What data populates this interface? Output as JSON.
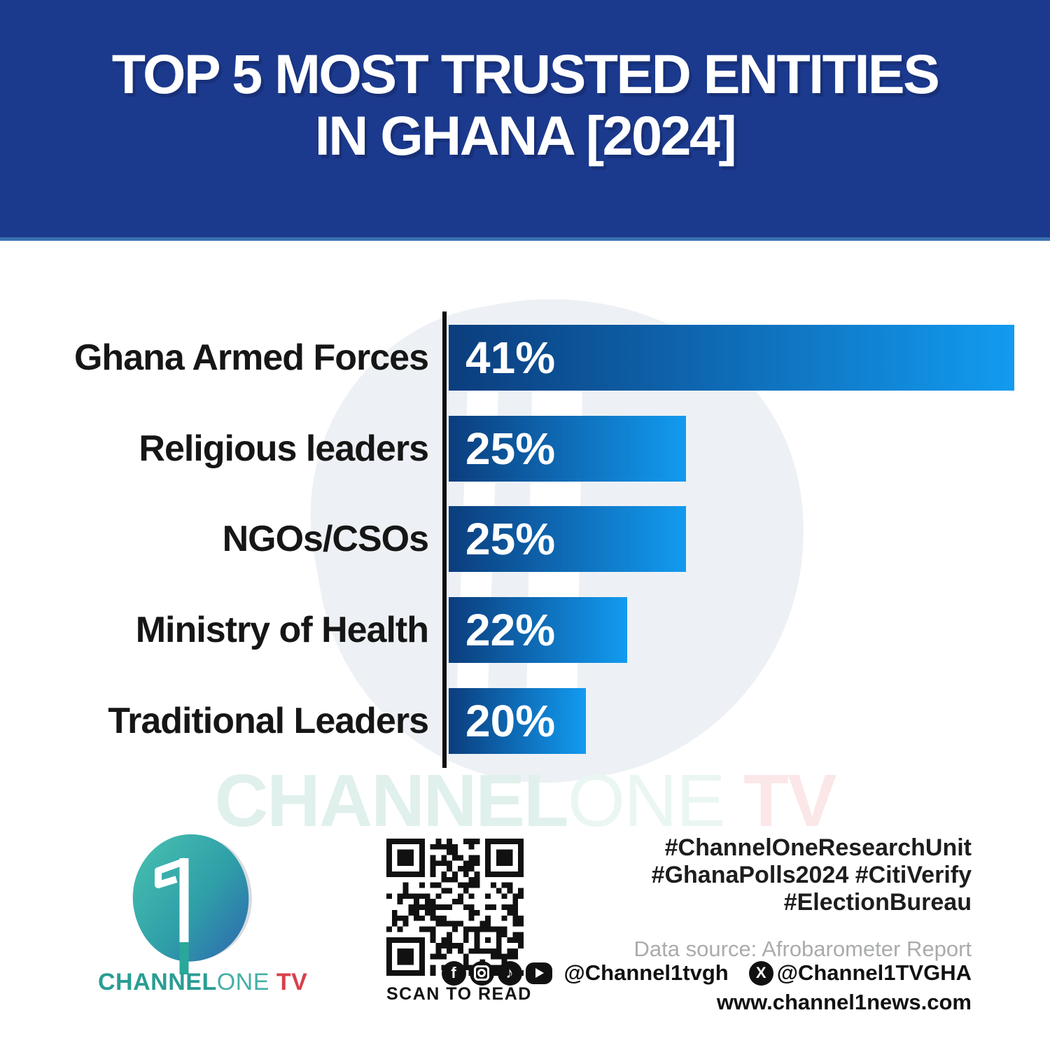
{
  "header": {
    "title_line1": "TOP 5 MOST TRUSTED ENTITIES",
    "title_line2": "IN GHANA [2024]"
  },
  "chart_data": {
    "type": "bar",
    "orientation": "horizontal",
    "title": "TOP 5 MOST TRUSTED ENTITIES IN GHANA [2024]",
    "categories": [
      "Ghana Armed Forces",
      "Religious leaders",
      "NGOs/CSOs",
      "Ministry of Health",
      "Traditional Leaders"
    ],
    "values": [
      41,
      25,
      25,
      22,
      20
    ],
    "value_labels": [
      "41%",
      "25%",
      "25%",
      "22%",
      "20%"
    ],
    "unit": "%",
    "grid": false,
    "legend": "none",
    "bar_color_start": "#0b3d7d",
    "bar_color_end": "#129bf0",
    "bar_length_fractions": [
      1,
      0.42,
      0.42,
      0.315,
      0.242
    ]
  },
  "watermark": {
    "channel": "CHANNEL",
    "one": "ONE",
    "tv": " TV"
  },
  "footer": {
    "logo": {
      "channel": "CHANNEL",
      "one": "ONE",
      "tv": " TV"
    },
    "qr_caption": "SCAN TO READ",
    "hashtags": [
      "#ChannelOneResearchUnit",
      "#GhanaPolls2024 #CitiVerify",
      "#ElectionBureau"
    ],
    "data_source": "Data source: Afrobarometer Report",
    "social": {
      "handle_main": "@Channel1tvgh",
      "handle_x": "@Channel1TVGHA"
    },
    "website": "www.channel1news.com"
  },
  "colors": {
    "header_bg": "#1b3a8e",
    "header_accent": "#3a70b2",
    "bar_start": "#0b3d7d",
    "bar_end": "#129bf0",
    "text_dark": "#161616",
    "muted_gray": "#a9abad",
    "logo_teal": "#2a9d93",
    "logo_teal_light": "#45b0a5",
    "logo_red": "#d8404a"
  }
}
